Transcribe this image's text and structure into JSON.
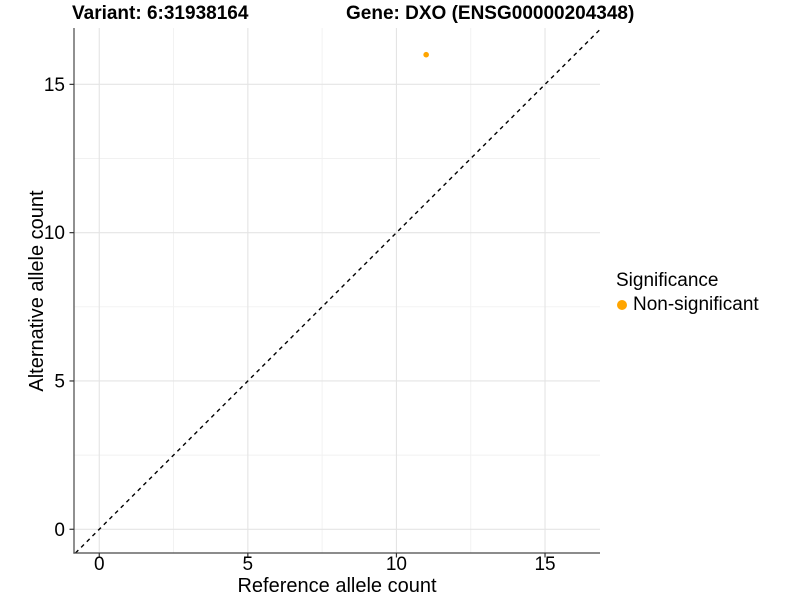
{
  "colors": {
    "background": "#ffffff",
    "axis": "#474747",
    "tick": "#333333",
    "grid_major": "#e4e4e4",
    "grid_minor": "#f1f1f1",
    "text": "#000000",
    "point": "#FFA500"
  },
  "chart_data": {
    "type": "scatter",
    "titles": [
      "Variant: 6:31938164",
      "Gene: DXO (ENSG00000204348)"
    ],
    "xlabel": "Reference allele count",
    "ylabel": "Alternative allele count",
    "xlim": [
      -0.85,
      16.85
    ],
    "ylim": [
      -0.8,
      16.9
    ],
    "xticks": [
      0,
      5,
      10,
      15
    ],
    "yticks": [
      0,
      5,
      10,
      15
    ],
    "xminor": [
      2.5,
      7.5,
      12.5
    ],
    "yminor": [
      2.5,
      7.5,
      12.5
    ],
    "grid": "major+minor",
    "series": [
      {
        "name": "Non-significant",
        "color": "#FFA500",
        "points": [
          {
            "x": 11,
            "y": 16
          }
        ]
      }
    ],
    "identity_line": {
      "style": "dashed",
      "slope": 1,
      "intercept": 0,
      "color": "#000000"
    },
    "legend": {
      "title": "Significance",
      "position": "right",
      "items": [
        {
          "label": "Non-significant",
          "color": "#FFA500"
        }
      ]
    }
  }
}
